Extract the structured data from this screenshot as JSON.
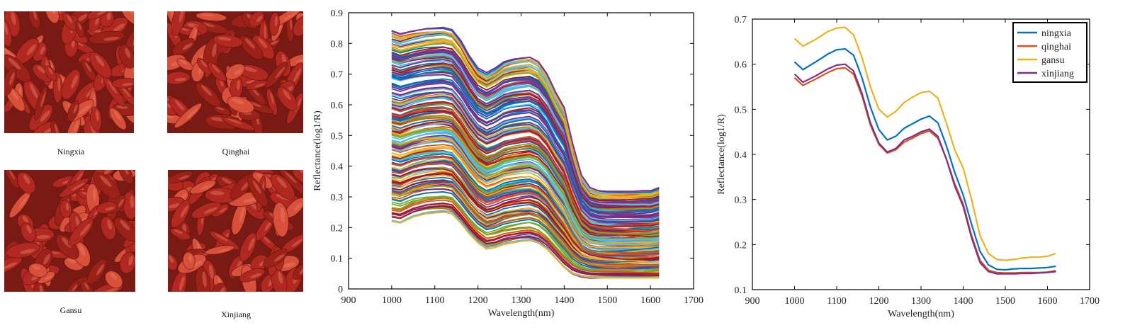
{
  "photos": [
    {
      "caption": "Ningxia"
    },
    {
      "caption": "Qinghai"
    },
    {
      "caption": "Gansu"
    },
    {
      "caption": "Xinjiang"
    }
  ],
  "colors": {
    "berry_dark": "#7a1a14",
    "berry_mid": "#b0281f",
    "berry_light": "#d9503a",
    "ningxia": "#0072BD",
    "qinghai": "#D95319",
    "gansu": "#EDB120",
    "xinjiang": "#7E2F8E",
    "palette": [
      "#0072BD",
      "#D95319",
      "#EDB120",
      "#7E2F8E",
      "#77AC30",
      "#4DBEEE",
      "#A2142F"
    ]
  },
  "chart_data": [
    {
      "type": "line",
      "title": "",
      "xlabel": "Wavelength(nm)",
      "ylabel": "Reflectance(log1/R)",
      "xlim": [
        900,
        1700
      ],
      "ylim": [
        0,
        0.9
      ],
      "xticks": [
        "900",
        "1000",
        "1100",
        "1200",
        "1300",
        "1400",
        "1500",
        "1600",
        "1700"
      ],
      "yticks": [
        "0",
        "0.1",
        "0.2",
        "0.3",
        "0.4",
        "0.5",
        "0.6",
        "0.7",
        "0.8",
        "0.9"
      ],
      "grid": false,
      "legend": "none",
      "series_count": 200,
      "x": [
        1000,
        1020,
        1050,
        1080,
        1100,
        1120,
        1140,
        1160,
        1180,
        1200,
        1220,
        1240,
        1260,
        1280,
        1300,
        1320,
        1340,
        1360,
        1380,
        1400,
        1420,
        1440,
        1460,
        1480,
        1500,
        1520,
        1540,
        1560,
        1580,
        1600,
        1620
      ],
      "top_envelope": [
        0.84,
        0.83,
        0.84,
        0.848,
        0.85,
        0.852,
        0.845,
        0.81,
        0.76,
        0.72,
        0.705,
        0.72,
        0.74,
        0.748,
        0.752,
        0.755,
        0.74,
        0.7,
        0.64,
        0.59,
        0.47,
        0.37,
        0.33,
        0.32,
        0.318,
        0.318,
        0.318,
        0.318,
        0.32,
        0.32,
        0.33
      ],
      "bottom_envelope": [
        0.22,
        0.215,
        0.235,
        0.245,
        0.248,
        0.25,
        0.245,
        0.215,
        0.18,
        0.15,
        0.13,
        0.135,
        0.145,
        0.15,
        0.155,
        0.158,
        0.15,
        0.13,
        0.1,
        0.07,
        0.05,
        0.042,
        0.038,
        0.037,
        0.036,
        0.036,
        0.036,
        0.036,
        0.036,
        0.036,
        0.036
      ]
    },
    {
      "type": "line",
      "title": "",
      "xlabel": "Wavelength(nm)",
      "ylabel": "Reflectance(log1/R)",
      "xlim": [
        900,
        1700
      ],
      "ylim": [
        0.1,
        0.7
      ],
      "xticks": [
        "900",
        "1000",
        "1100",
        "1200",
        "1300",
        "1400",
        "1500",
        "1600",
        "1700"
      ],
      "yticks": [
        "0.1",
        "0.2",
        "0.3",
        "0.4",
        "0.5",
        "0.6",
        "0.7"
      ],
      "grid": false,
      "legend": "top-right",
      "x": [
        1000,
        1020,
        1050,
        1080,
        1100,
        1120,
        1140,
        1160,
        1180,
        1200,
        1220,
        1240,
        1260,
        1280,
        1300,
        1320,
        1340,
        1360,
        1380,
        1400,
        1420,
        1440,
        1460,
        1480,
        1500,
        1520,
        1540,
        1560,
        1580,
        1600,
        1620
      ],
      "series": [
        {
          "name": "ningxia",
          "values": [
            0.605,
            0.588,
            0.605,
            0.623,
            0.632,
            0.634,
            0.62,
            0.57,
            0.505,
            0.455,
            0.432,
            0.44,
            0.458,
            0.468,
            0.478,
            0.485,
            0.47,
            0.42,
            0.36,
            0.31,
            0.245,
            0.185,
            0.155,
            0.145,
            0.144,
            0.146,
            0.147,
            0.147,
            0.148,
            0.149,
            0.152
          ]
        },
        {
          "name": "qinghai",
          "values": [
            0.57,
            0.553,
            0.567,
            0.582,
            0.59,
            0.592,
            0.578,
            0.53,
            0.465,
            0.422,
            0.403,
            0.41,
            0.427,
            0.436,
            0.446,
            0.452,
            0.436,
            0.39,
            0.335,
            0.29,
            0.22,
            0.165,
            0.143,
            0.138,
            0.137,
            0.137,
            0.138,
            0.138,
            0.138,
            0.139,
            0.142
          ]
        },
        {
          "name": "gansu",
          "values": [
            0.657,
            0.64,
            0.655,
            0.673,
            0.68,
            0.682,
            0.665,
            0.615,
            0.55,
            0.5,
            0.483,
            0.495,
            0.515,
            0.527,
            0.537,
            0.54,
            0.525,
            0.47,
            0.41,
            0.37,
            0.3,
            0.22,
            0.18,
            0.167,
            0.165,
            0.167,
            0.17,
            0.172,
            0.172,
            0.174,
            0.18
          ]
        },
        {
          "name": "xinjiang",
          "values": [
            0.578,
            0.56,
            0.574,
            0.59,
            0.598,
            0.6,
            0.585,
            0.535,
            0.47,
            0.425,
            0.405,
            0.413,
            0.432,
            0.44,
            0.45,
            0.456,
            0.44,
            0.39,
            0.33,
            0.285,
            0.215,
            0.16,
            0.14,
            0.135,
            0.135,
            0.135,
            0.136,
            0.136,
            0.137,
            0.138,
            0.14
          ]
        }
      ]
    }
  ]
}
